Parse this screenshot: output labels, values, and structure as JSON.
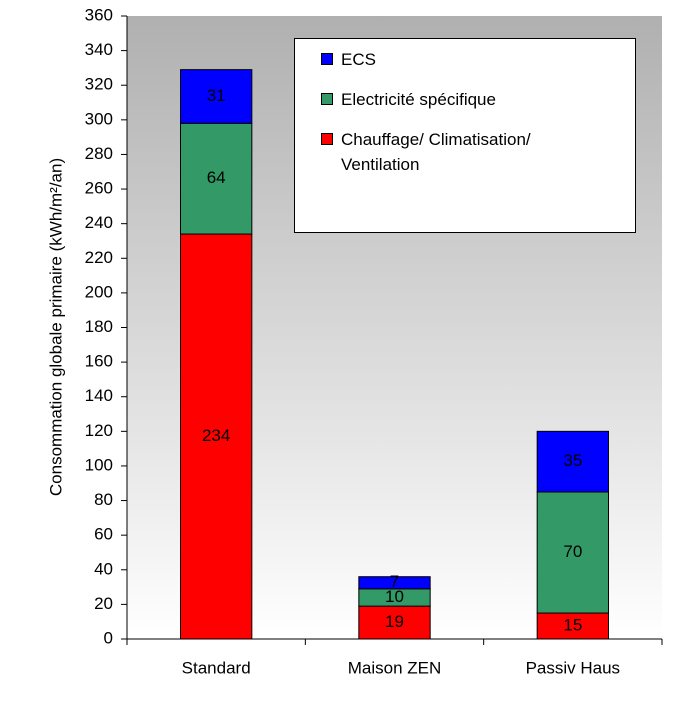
{
  "chart_data": {
    "type": "stacked_bar",
    "y_label": "Consommation globale primaire (kWh/m²/an)",
    "categories": [
      "Standard",
      "Maison ZEN",
      "Passiv Haus"
    ],
    "series": [
      {
        "name": "Chauffage/ Climatisation/ Ventilation",
        "color": "#ff0000",
        "values": [
          234,
          19,
          15
        ]
      },
      {
        "name": "Electricité spécifique",
        "color": "#339966",
        "values": [
          64,
          10,
          70
        ]
      },
      {
        "name": "ECS",
        "color": "#0000ff",
        "values": [
          31,
          7,
          35
        ]
      }
    ],
    "ylim": [
      0,
      360
    ],
    "yticks": [
      0,
      20,
      40,
      60,
      80,
      100,
      120,
      140,
      160,
      180,
      200,
      220,
      240,
      260,
      280,
      300,
      320,
      340,
      360
    ],
    "data_labels": true
  }
}
